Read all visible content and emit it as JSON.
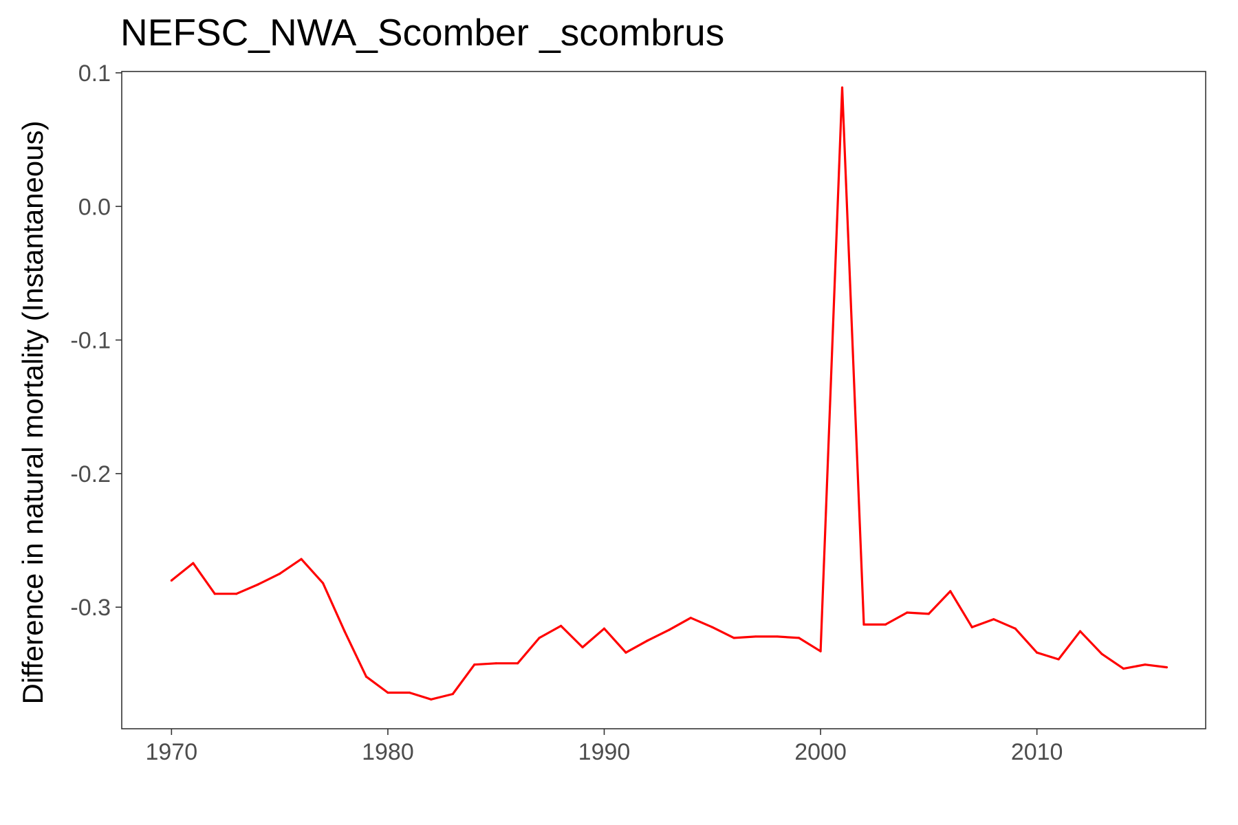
{
  "chart_data": {
    "type": "line",
    "title": "NEFSC_NWA_Scomber _scombrus",
    "xlabel": "",
    "ylabel": "Difference in natural mortality (Instantaneous)",
    "xlim": [
      1967.7,
      2017.8
    ],
    "ylim": [
      -0.391,
      0.101
    ],
    "x_ticks": [
      1970,
      1980,
      1990,
      2000,
      2010
    ],
    "x_tick_labels": [
      "1970",
      "1980",
      "1990",
      "2000",
      "2010"
    ],
    "y_ticks": [
      0.1,
      0.0,
      -0.1,
      -0.2,
      -0.3
    ],
    "y_tick_labels": [
      "0.1",
      "0.0",
      "-0.1",
      "-0.2",
      "-0.3"
    ],
    "grid": false,
    "series": [
      {
        "color": "#ff0000",
        "x": [
          1970,
          1971,
          1972,
          1973,
          1974,
          1975,
          1976,
          1977,
          1978,
          1979,
          1980,
          1981,
          1982,
          1983,
          1984,
          1985,
          1986,
          1987,
          1988,
          1989,
          1990,
          1991,
          1992,
          1993,
          1994,
          1995,
          1996,
          1997,
          1998,
          1999,
          2000,
          2001,
          2002,
          2003,
          2004,
          2005,
          2006,
          2007,
          2008,
          2009,
          2010,
          2011,
          2012,
          2013,
          2014,
          2015,
          2016
        ],
        "y": [
          -0.28,
          -0.267,
          -0.29,
          -0.29,
          -0.283,
          -0.275,
          -0.264,
          -0.282,
          -0.318,
          -0.352,
          -0.364,
          -0.364,
          -0.369,
          -0.365,
          -0.343,
          -0.342,
          -0.342,
          -0.323,
          -0.314,
          -0.33,
          -0.316,
          -0.334,
          -0.325,
          -0.317,
          -0.308,
          -0.315,
          -0.323,
          -0.322,
          -0.322,
          -0.323,
          -0.333,
          0.089,
          -0.313,
          -0.313,
          -0.304,
          -0.305,
          -0.288,
          -0.315,
          -0.309,
          -0.316,
          -0.334,
          -0.339,
          -0.318,
          -0.335,
          -0.346,
          -0.343,
          -0.345
        ]
      }
    ]
  }
}
